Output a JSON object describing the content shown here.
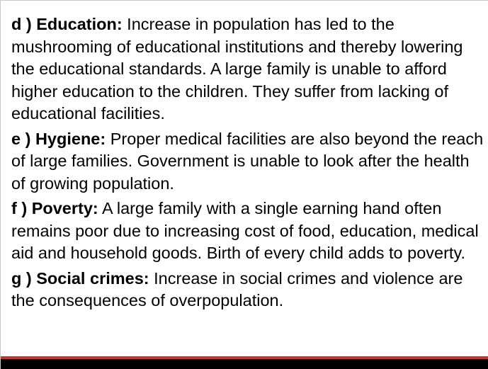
{
  "paragraphs": [
    {
      "heading": "d ) Education:",
      "body": "  Increase in population has led to the mushrooming of educational institutions and thereby lowering the educational standards. A large family is unable  to afford higher education to the children. They suffer from lacking of educational facilities."
    },
    {
      "heading": "e ) Hygiene:",
      "body": " Proper medical facilities are also beyond the reach of large families. Government is unable to look after the health of growing population."
    },
    {
      "heading": "f ) Poverty:",
      "body": " A large family with a single earning hand often remains  poor due to increasing cost of food, education, medical aid and household  goods. Birth of every child adds to poverty."
    },
    {
      "heading": "g ) Social crimes:",
      "body": " Increase in social crimes and violence are the consequences of overpopulation."
    }
  ],
  "colors": {
    "text": "#000000",
    "footer_bar": "#000000",
    "footer_accent": "#c0392b"
  }
}
